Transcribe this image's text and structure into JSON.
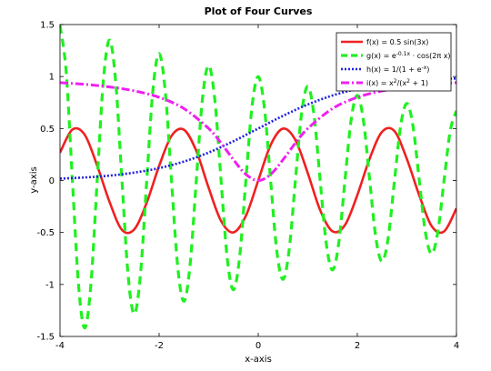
{
  "chart_data": {
    "type": "line",
    "title": "Plot of Four Curves",
    "xlabel": "x-axis",
    "ylabel": "y-axis",
    "xlim": [
      -4,
      4
    ],
    "ylim": [
      -1.5,
      1.5
    ],
    "x_ticks": [
      -4,
      -2,
      0,
      2,
      4
    ],
    "x_tick_labels": [
      "-4",
      "-2",
      "0",
      "2",
      "4"
    ],
    "y_ticks": [
      -1.5,
      -1,
      -0.5,
      0,
      0.5,
      1,
      1.5
    ],
    "y_tick_labels": [
      "-1.5",
      "-1",
      "-0.5",
      "0",
      "0.5",
      "1",
      "1.5"
    ],
    "grid": false,
    "legend_position": "top-right",
    "series": [
      {
        "name": "f(x) = 0.5 sin(3x)",
        "legend_parts": [
          {
            "t": "f(x) = 0.5 sin(3x)"
          }
        ],
        "color": "#f02020",
        "style": "solid",
        "x": [
          -4.0,
          -3.75,
          -3.5,
          -3.25,
          -3.0,
          -2.75,
          -2.5,
          -2.25,
          -2.0,
          -1.75,
          -1.5,
          -1.25,
          -1.0,
          -0.75,
          -0.5,
          -0.25,
          0.0,
          0.25,
          0.5,
          0.75,
          1.0,
          1.25,
          1.5,
          1.75,
          2.0,
          2.25,
          2.5,
          2.75,
          3.0,
          3.25,
          3.5,
          3.75,
          4.0
        ],
        "y": [
          0.268,
          0.49,
          0.439,
          0.143,
          -0.206,
          -0.475,
          -0.469,
          -0.212,
          0.14,
          0.429,
          0.489,
          0.285,
          -0.071,
          -0.389,
          -0.499,
          -0.341,
          0.0,
          0.341,
          0.499,
          0.389,
          0.071,
          -0.285,
          -0.489,
          -0.429,
          -0.14,
          0.212,
          0.469,
          0.475,
          0.206,
          -0.143,
          -0.439,
          -0.49,
          -0.268
        ]
      },
      {
        "name": "g(x) = e^(-0.1x) · cos(2πx)",
        "legend_parts": [
          {
            "t": "g(x) = e"
          },
          {
            "t": "-0.1x",
            "sup": true
          },
          {
            "t": " · cos(2π x)"
          }
        ],
        "color": "#20f020",
        "style": "dashed",
        "x": [
          -4.0,
          -3.875,
          -3.75,
          -3.625,
          -3.5,
          -3.375,
          -3.25,
          -3.125,
          -3.0,
          -2.875,
          -2.75,
          -2.625,
          -2.5,
          -2.375,
          -2.25,
          -2.125,
          -2.0,
          -1.875,
          -1.75,
          -1.625,
          -1.5,
          -1.375,
          -1.25,
          -1.125,
          -1.0,
          -0.875,
          -0.75,
          -0.625,
          -0.5,
          -0.375,
          -0.25,
          -0.125,
          0.0,
          0.125,
          0.25,
          0.375,
          0.5,
          0.625,
          0.75,
          0.875,
          1.0,
          1.125,
          1.25,
          1.375,
          1.5,
          1.625,
          1.75,
          1.875,
          2.0,
          2.125,
          2.25,
          2.375,
          2.5,
          2.625,
          2.75,
          2.875,
          3.0,
          3.125,
          3.25,
          3.375,
          3.5,
          3.625,
          3.75,
          3.875,
          4.0
        ],
        "y": [
          1.492,
          1.042,
          0.0,
          -1.013,
          -1.419,
          -0.991,
          0.0,
          0.963,
          1.35,
          0.942,
          0.0,
          -0.916,
          -1.284,
          -0.896,
          0.0,
          0.872,
          1.221,
          0.853,
          0.0,
          -0.829,
          -1.162,
          -0.811,
          0.0,
          0.789,
          1.105,
          0.771,
          0.0,
          -0.75,
          -1.051,
          -0.734,
          0.0,
          0.713,
          1.0,
          0.698,
          0.0,
          -0.679,
          -0.951,
          -0.664,
          0.0,
          0.645,
          0.905,
          0.632,
          0.0,
          -0.614,
          -0.861,
          -0.601,
          0.0,
          0.584,
          0.819,
          0.571,
          0.0,
          -0.556,
          -0.779,
          -0.544,
          0.0,
          0.529,
          0.741,
          0.517,
          0.0,
          -0.503,
          -0.705,
          -0.492,
          0.0,
          0.478,
          0.67
        ]
      },
      {
        "name": "h(x) = 1/(1 + e^-x)",
        "legend_parts": [
          {
            "t": "h(x) = 1/(1 + e"
          },
          {
            "t": "-x",
            "sup": true
          },
          {
            "t": ")"
          }
        ],
        "color": "#2020e0",
        "style": "dotted",
        "x": [
          -4.0,
          -3.5,
          -3.0,
          -2.5,
          -2.0,
          -1.5,
          -1.0,
          -0.5,
          0.0,
          0.5,
          1.0,
          1.5,
          2.0,
          2.5,
          3.0,
          3.5,
          4.0
        ],
        "y": [
          0.018,
          0.029,
          0.047,
          0.076,
          0.119,
          0.182,
          0.269,
          0.378,
          0.5,
          0.622,
          0.731,
          0.818,
          0.881,
          0.924,
          0.953,
          0.971,
          0.982
        ]
      },
      {
        "name": "i(x) = x²/(x² + 1)",
        "legend_parts": [
          {
            "t": "i(x) = x"
          },
          {
            "t": "2",
            "sup": true
          },
          {
            "t": "/(x"
          },
          {
            "t": "2",
            "sup": true
          },
          {
            "t": " + 1)"
          }
        ],
        "color": "#f020f0",
        "style": "dashdot",
        "x": [
          -4.0,
          -3.5,
          -3.0,
          -2.5,
          -2.0,
          -1.5,
          -1.0,
          -0.75,
          -0.5,
          -0.25,
          0.0,
          0.25,
          0.5,
          0.75,
          1.0,
          1.5,
          2.0,
          2.5,
          3.0,
          3.5,
          4.0
        ],
        "y": [
          0.941,
          0.925,
          0.9,
          0.862,
          0.8,
          0.692,
          0.5,
          0.36,
          0.2,
          0.059,
          0.0,
          0.059,
          0.2,
          0.36,
          0.5,
          0.692,
          0.8,
          0.862,
          0.9,
          0.925,
          0.941
        ]
      }
    ]
  }
}
